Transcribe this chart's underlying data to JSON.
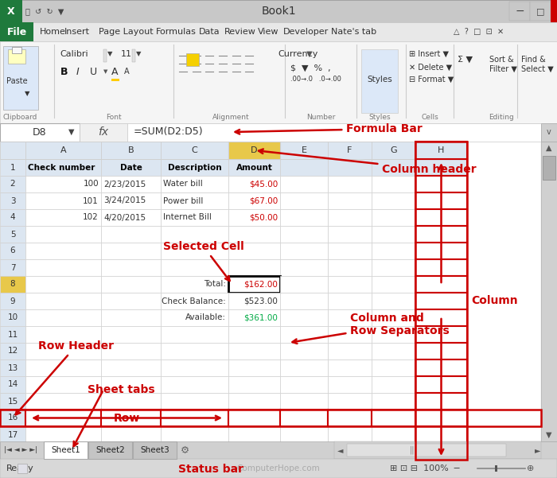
{
  "title": "Book1",
  "title_bar_color": "#c8c8c8",
  "ribbon_tab_color": "#f0f0f0",
  "file_btn_color": "#1f7a3c",
  "toolbar_color": "#f5f5f5",
  "formula_bar_color": "#ffffff",
  "grid_bg": "#ffffff",
  "col_hdr_bg": "#dce6f1",
  "col_hdr_selected": "#e8c84a",
  "row_hdr_bg": "#dce6f1",
  "row_hdr_selected": "#e8c84a",
  "cell_border": "#d0d0d0",
  "annotation_color": "#cc0000",
  "red_box_color": "#cc0000",
  "grid_line_color": "#c8c8c8",
  "status_bar_color": "#d8d8d8",
  "tab_bar_color": "#d0d0d0",
  "scrollbar_color": "#d0d0d0",
  "col_headers": [
    "",
    "A",
    "B",
    "C",
    "D",
    "E",
    "F",
    "G",
    "H"
  ],
  "cell_data": {
    "r0c1": {
      "text": "Check number",
      "bold": true,
      "color": "#000000",
      "align": "left"
    },
    "r0c2": {
      "text": "Date",
      "bold": true,
      "color": "#000000",
      "align": "center"
    },
    "r0c3": {
      "text": "Description",
      "bold": true,
      "color": "#000000",
      "align": "center"
    },
    "r0c4": {
      "text": "Amount",
      "bold": true,
      "color": "#000000",
      "align": "center"
    },
    "r1c1": {
      "text": "100",
      "bold": false,
      "color": "#333333",
      "align": "right"
    },
    "r1c2": {
      "text": "2/23/2015",
      "bold": false,
      "color": "#333333",
      "align": "left"
    },
    "r1c3": {
      "text": "Water bill",
      "bold": false,
      "color": "#333333",
      "align": "left"
    },
    "r1c4": {
      "text": "$45.00",
      "bold": false,
      "color": "#cc0000",
      "align": "right"
    },
    "r2c1": {
      "text": "101",
      "bold": false,
      "color": "#333333",
      "align": "right"
    },
    "r2c2": {
      "text": "3/24/2015",
      "bold": false,
      "color": "#333333",
      "align": "left"
    },
    "r2c3": {
      "text": "Power bill",
      "bold": false,
      "color": "#333333",
      "align": "left"
    },
    "r2c4": {
      "text": "$67.00",
      "bold": false,
      "color": "#cc0000",
      "align": "right"
    },
    "r3c1": {
      "text": "102",
      "bold": false,
      "color": "#333333",
      "align": "right"
    },
    "r3c2": {
      "text": "4/20/2015",
      "bold": false,
      "color": "#333333",
      "align": "left"
    },
    "r3c3": {
      "text": "Internet Bill",
      "bold": false,
      "color": "#333333",
      "align": "left"
    },
    "r3c4": {
      "text": "$50.00",
      "bold": false,
      "color": "#cc0000",
      "align": "right"
    },
    "r7c3": {
      "text": "Total:",
      "bold": false,
      "color": "#333333",
      "align": "right"
    },
    "r7c4": {
      "text": "$162.00",
      "bold": false,
      "color": "#cc0000",
      "align": "right"
    },
    "r8c3": {
      "text": "Check Balance:",
      "bold": false,
      "color": "#333333",
      "align": "right"
    },
    "r8c4": {
      "text": "$523.00",
      "bold": false,
      "color": "#333333",
      "align": "right"
    },
    "r9c3": {
      "text": "Available:",
      "bold": false,
      "color": "#333333",
      "align": "right"
    },
    "r9c4": {
      "text": "$361.00",
      "bold": false,
      "color": "#00aa44",
      "align": "right"
    }
  },
  "n_rows": 18,
  "menu_items": [
    "Home",
    "Insert",
    "Page Layout",
    "Formulas",
    "Data",
    "Review",
    "View",
    "Developer",
    "Nate's tab"
  ],
  "sheet_tabs": [
    "Sheet1",
    "Sheet2",
    "Sheet3"
  ],
  "formula_bar_text": "=SUM(D2:D5)",
  "cell_ref": "D8"
}
